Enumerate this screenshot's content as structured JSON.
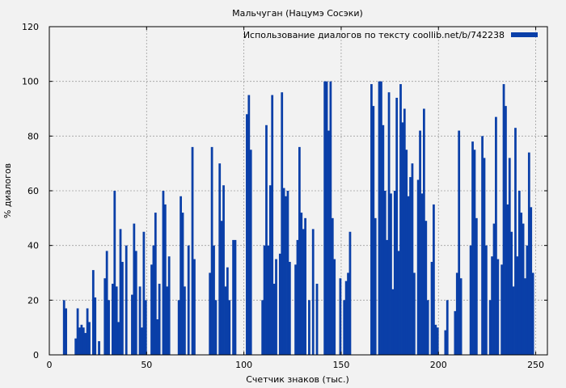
{
  "chart_data": {
    "type": "bar",
    "title": "Мальчуган (Нацумэ Сосэки)",
    "xlabel": "Счетчик знаков (тыс.)",
    "ylabel": "% диалогов",
    "xlim": [
      0,
      256
    ],
    "ylim": [
      0,
      120
    ],
    "xticks": [
      0,
      50,
      100,
      150,
      200,
      250
    ],
    "yticks": [
      0,
      20,
      40,
      60,
      80,
      100,
      120
    ],
    "grid": true,
    "legend_position": "top-right",
    "series": [
      {
        "name": "Использование диалогов по тексту coollib.net/b/742238",
        "color": "#0a3fa8",
        "x_start": 0,
        "x_step": 1,
        "values": [
          0,
          0,
          0,
          0,
          0,
          0,
          0,
          20,
          17,
          0,
          0,
          0,
          0,
          6,
          17,
          10,
          11,
          10,
          8,
          17,
          12,
          0,
          31,
          21,
          0,
          5,
          0,
          0,
          28,
          38,
          20,
          0,
          26,
          60,
          25,
          12,
          46,
          34,
          0,
          40,
          0,
          0,
          22,
          48,
          38,
          0,
          25,
          10,
          45,
          20,
          0,
          0,
          33,
          40,
          52,
          13,
          26,
          0,
          60,
          55,
          25,
          36,
          0,
          0,
          0,
          0,
          20,
          58,
          52,
          25,
          0,
          40,
          0,
          76,
          35,
          0,
          0,
          0,
          0,
          0,
          0,
          0,
          30,
          76,
          40,
          20,
          0,
          70,
          49,
          62,
          25,
          32,
          20,
          0,
          42,
          42,
          0,
          0,
          0,
          0,
          0,
          88,
          95,
          75,
          0,
          0,
          0,
          0,
          0,
          20,
          40,
          84,
          40,
          62,
          95,
          26,
          35,
          0,
          37,
          96,
          61,
          58,
          60,
          34,
          0,
          0,
          33,
          42,
          76,
          52,
          46,
          50,
          0,
          20,
          0,
          46,
          0,
          26,
          0,
          0,
          0,
          100,
          100,
          82,
          100,
          50,
          35,
          0,
          0,
          28,
          0,
          20,
          27,
          30,
          45,
          0,
          0,
          0,
          0,
          0,
          0,
          0,
          0,
          0,
          0,
          99,
          91,
          50,
          0,
          100,
          100,
          84,
          60,
          42,
          96,
          59,
          24,
          60,
          94,
          38,
          99,
          85,
          90,
          75,
          58,
          65,
          70,
          30,
          0,
          64,
          82,
          59,
          90,
          49,
          20,
          0,
          34,
          55,
          11,
          10,
          0,
          0,
          0,
          9,
          20,
          0,
          0,
          0,
          16,
          30,
          82,
          28,
          0,
          0,
          0,
          0,
          40,
          78,
          75,
          50,
          0,
          0,
          80,
          72,
          40,
          0,
          20,
          36,
          48,
          87,
          35,
          0,
          33,
          99,
          91,
          55,
          72,
          45,
          25,
          83,
          36,
          60,
          52,
          48,
          28,
          40,
          74,
          54,
          30,
          0
        ]
      }
    ]
  }
}
